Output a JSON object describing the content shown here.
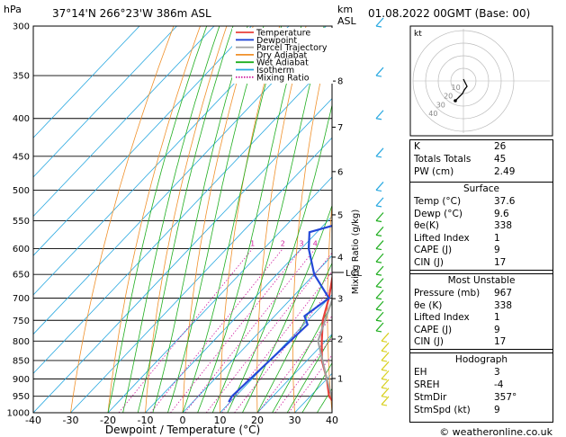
{
  "header": {
    "pressure_unit": "hPa",
    "location": "37°14'N  266°23'W  386m  ASL",
    "km_label": "km",
    "asl_label": "ASL",
    "datetime": "01.08.2022  00GMT  (Base: 00)"
  },
  "axes": {
    "x_title": "Dewpoint / Temperature (°C)",
    "right_title": "Mixing Ratio (g/kg)",
    "lcl_label": "LCL",
    "x_ticks": [
      "-40",
      "-30",
      "-20",
      "-10",
      "0",
      "10",
      "20",
      "30",
      "40"
    ],
    "p_ticks": [
      "300",
      "350",
      "400",
      "450",
      "500",
      "550",
      "600",
      "650",
      "700",
      "750",
      "800",
      "850",
      "900",
      "950",
      "1000"
    ],
    "km_ticks": [
      "8",
      "7",
      "6",
      "5",
      "4",
      "3",
      "2",
      "1"
    ],
    "mixing_ratio_labels": [
      "1",
      "2",
      "3",
      "4",
      "6",
      "8",
      "10",
      "15",
      "20",
      "25"
    ]
  },
  "legend": {
    "items": [
      {
        "label": "Temperature",
        "color": "#e8403a",
        "style": "solid"
      },
      {
        "label": "Dewpoint",
        "color": "#2448d8",
        "style": "solid"
      },
      {
        "label": "Parcel Trajectory",
        "color": "#a0a0a0",
        "style": "solid"
      },
      {
        "label": "Dry Adiabat",
        "color": "#f0902a",
        "style": "solid"
      },
      {
        "label": "Wet Adiabat",
        "color": "#1fae1f",
        "style": "solid"
      },
      {
        "label": "Isotherm",
        "color": "#28a8e0",
        "style": "solid"
      },
      {
        "label": "Mixing Ratio",
        "color": "#d020a0",
        "style": "dotted"
      }
    ]
  },
  "chart_data": {
    "type": "line",
    "x_axis": "temperature (°C)",
    "y_axis": "pressure (hPa)",
    "xlim": [
      -40,
      40
    ],
    "ylim": [
      1000,
      300
    ],
    "series": [
      {
        "name": "Temperature",
        "color": "#e8403a",
        "points": [
          [
            37.6,
            967
          ],
          [
            35,
            950
          ],
          [
            30,
            900
          ],
          [
            24,
            850
          ],
          [
            19,
            800
          ],
          [
            14,
            750
          ],
          [
            10,
            700
          ],
          [
            5,
            650
          ],
          [
            1,
            600
          ],
          [
            -1,
            550
          ],
          [
            -4,
            500
          ],
          [
            -7,
            450
          ],
          [
            -11,
            400
          ],
          [
            -14,
            350
          ],
          [
            -17,
            300
          ]
        ]
      },
      {
        "name": "Dewpoint",
        "color": "#2448d8",
        "points": [
          [
            9.6,
            967
          ],
          [
            9,
            950
          ],
          [
            10,
            850
          ],
          [
            11,
            760
          ],
          [
            8,
            740
          ],
          [
            10,
            700
          ],
          [
            0,
            650
          ],
          [
            -8,
            600
          ],
          [
            -12,
            570
          ],
          [
            -4,
            550
          ],
          [
            -12,
            525
          ],
          [
            -6,
            500
          ],
          [
            -10,
            470
          ],
          [
            -8,
            450
          ],
          [
            -3,
            400
          ],
          [
            -32,
            370
          ],
          [
            -30,
            300
          ]
        ]
      },
      {
        "name": "Parcel Trajectory",
        "color": "#a0a0a0",
        "points": [
          [
            37.6,
            967
          ],
          [
            30,
            900
          ],
          [
            18,
            800
          ],
          [
            11,
            700
          ],
          [
            7,
            650
          ],
          [
            3,
            600
          ],
          [
            0,
            550
          ],
          [
            -3,
            500
          ],
          [
            -6,
            450
          ],
          [
            -9,
            400
          ],
          [
            -12,
            350
          ],
          [
            -15,
            300
          ]
        ]
      }
    ],
    "indices": {
      "rows": [
        {
          "label": "K",
          "value": "26"
        },
        {
          "label": "Totals Totals",
          "value": "45"
        },
        {
          "label": "PW (cm)",
          "value": "2.49"
        }
      ],
      "surface": {
        "title": "Surface",
        "rows": [
          {
            "label": "Temp (°C)",
            "value": "37.6"
          },
          {
            "label": "Dewp (°C)",
            "value": "9.6"
          },
          {
            "label": "θe(K)",
            "value": "338"
          },
          {
            "label": "Lifted Index",
            "value": "1"
          },
          {
            "label": "CAPE (J)",
            "value": "9"
          },
          {
            "label": "CIN (J)",
            "value": "17"
          }
        ]
      },
      "most_unstable": {
        "title": "Most Unstable",
        "rows": [
          {
            "label": "Pressure (mb)",
            "value": "967"
          },
          {
            "label": "θe (K)",
            "value": "338"
          },
          {
            "label": "Lifted Index",
            "value": "1"
          },
          {
            "label": "CAPE (J)",
            "value": "9"
          },
          {
            "label": "CIN (J)",
            "value": "17"
          }
        ]
      },
      "hodograph": {
        "title": "Hodograph",
        "rows": [
          {
            "label": "EH",
            "value": "3"
          },
          {
            "label": "SREH",
            "value": "-4"
          },
          {
            "label": "StmDir",
            "value": "357°"
          },
          {
            "label": "StmSpd (kt)",
            "value": "9"
          }
        ]
      }
    },
    "hodograph_plot": {
      "unit": "kt",
      "ring_labels": [
        "10",
        "20",
        "30",
        "40"
      ]
    }
  },
  "footer": {
    "copyright": "© weatheronline.co.uk"
  }
}
